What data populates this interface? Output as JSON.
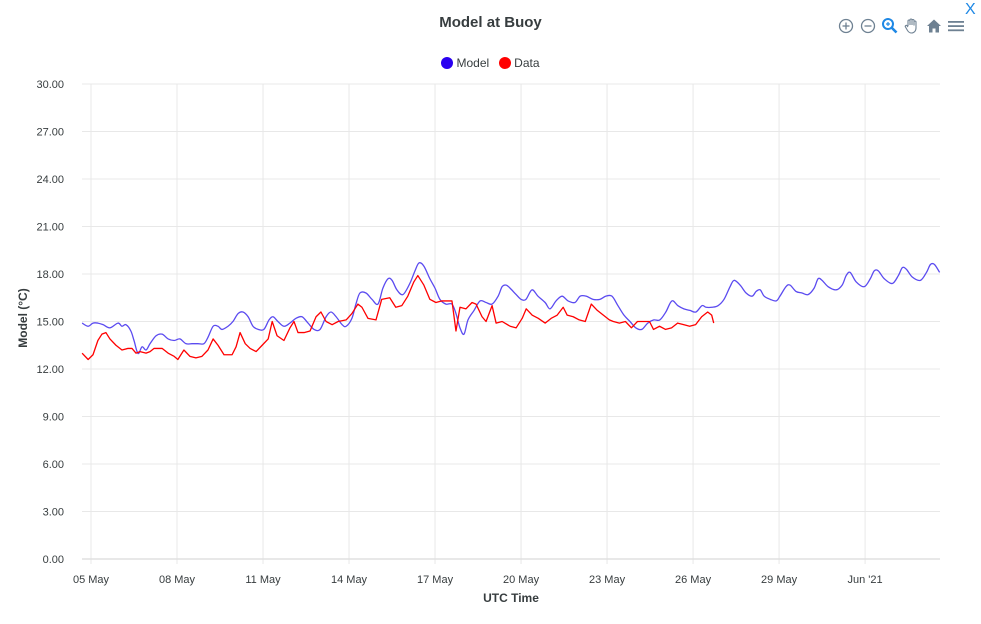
{
  "header": {
    "title": "Model at Buoy",
    "close_label": "X"
  },
  "toolbar": {
    "icons": [
      "zoom-in-icon",
      "zoom-out-icon",
      "selection-zoom-icon",
      "pan-icon",
      "home-reset-icon",
      "menu-icon"
    ],
    "active_color": "#1e88e5",
    "inactive_color": "#6e8192"
  },
  "legend": [
    {
      "label": "Model",
      "color": "#2a00f0"
    },
    {
      "label": "Data",
      "color": "#ff0000"
    }
  ],
  "chart_data": {
    "type": "line",
    "title": "Model at Buoy",
    "xlabel": "UTC Time",
    "ylabel": "Model (°C)",
    "ylim": [
      0,
      30
    ],
    "yticks": [
      "0.00",
      "3.00",
      "6.00",
      "9.00",
      "12.00",
      "15.00",
      "18.00",
      "21.00",
      "24.00",
      "27.00",
      "30.00"
    ],
    "xticks": [
      "05 May",
      "08 May",
      "11 May",
      "14 May",
      "17 May",
      "20 May",
      "23 May",
      "26 May",
      "29 May",
      "Jun '21"
    ],
    "x_unit": "days since 05 May",
    "xlim": [
      -0.31,
      29.6
    ],
    "grid": true,
    "legend_position": "top",
    "series": [
      {
        "name": "Model",
        "color": "#5b4bf0",
        "points": [
          [
            -0.31,
            14.9
          ],
          [
            -0.1,
            14.7
          ],
          [
            0.07,
            14.9
          ],
          [
            0.24,
            14.9
          ],
          [
            0.42,
            14.8
          ],
          [
            0.66,
            14.6
          ],
          [
            0.94,
            14.9
          ],
          [
            1.08,
            14.7
          ],
          [
            1.22,
            14.8
          ],
          [
            1.39,
            14.4
          ],
          [
            1.5,
            13.8
          ],
          [
            1.64,
            12.98
          ],
          [
            1.78,
            13.4
          ],
          [
            1.92,
            13.2
          ],
          [
            2.06,
            13.6
          ],
          [
            2.27,
            14.1
          ],
          [
            2.48,
            14.2
          ],
          [
            2.69,
            13.9
          ],
          [
            2.9,
            13.8
          ],
          [
            3.1,
            13.9
          ],
          [
            3.31,
            13.6
          ],
          [
            3.52,
            13.6
          ],
          [
            3.73,
            13.6
          ],
          [
            3.94,
            13.6
          ],
          [
            4.08,
            14.0
          ],
          [
            4.26,
            14.7
          ],
          [
            4.43,
            14.7
          ],
          [
            4.57,
            14.5
          ],
          [
            4.78,
            14.7
          ],
          [
            4.95,
            15.0
          ],
          [
            5.13,
            15.5
          ],
          [
            5.3,
            15.6
          ],
          [
            5.48,
            15.3
          ],
          [
            5.65,
            14.7
          ],
          [
            5.83,
            14.5
          ],
          [
            6.03,
            14.5
          ],
          [
            6.21,
            15.1
          ],
          [
            6.35,
            15.3
          ],
          [
            6.52,
            15.0
          ],
          [
            6.73,
            14.7
          ],
          [
            6.94,
            14.9
          ],
          [
            7.15,
            15.2
          ],
          [
            7.36,
            15.3
          ],
          [
            7.57,
            14.9
          ],
          [
            7.78,
            14.5
          ],
          [
            7.99,
            14.5
          ],
          [
            8.2,
            15.3
          ],
          [
            8.37,
            15.6
          ],
          [
            8.55,
            15.3
          ],
          [
            8.76,
            14.8
          ],
          [
            8.9,
            14.7
          ],
          [
            9.1,
            15.2
          ],
          [
            9.24,
            16.1
          ],
          [
            9.38,
            16.8
          ],
          [
            9.59,
            16.8
          ],
          [
            9.8,
            16.4
          ],
          [
            10.01,
            16.1
          ],
          [
            10.18,
            17.1
          ],
          [
            10.36,
            17.7
          ],
          [
            10.5,
            17.6
          ],
          [
            10.67,
            17.0
          ],
          [
            10.88,
            16.7
          ],
          [
            11.12,
            17.4
          ],
          [
            11.3,
            18.2
          ],
          [
            11.44,
            18.7
          ],
          [
            11.61,
            18.5
          ],
          [
            11.82,
            17.7
          ],
          [
            12.0,
            17.1
          ],
          [
            12.17,
            16.4
          ],
          [
            12.38,
            16.1
          ],
          [
            12.59,
            16.1
          ],
          [
            12.73,
            15.5
          ],
          [
            12.87,
            14.6
          ],
          [
            13.01,
            14.2
          ],
          [
            13.15,
            15.1
          ],
          [
            13.36,
            15.7
          ],
          [
            13.57,
            16.3
          ],
          [
            13.78,
            16.2
          ],
          [
            13.99,
            16.1
          ],
          [
            14.2,
            16.6
          ],
          [
            14.34,
            17.2
          ],
          [
            14.48,
            17.3
          ],
          [
            14.62,
            17.1
          ],
          [
            14.83,
            16.7
          ],
          [
            15.0,
            16.4
          ],
          [
            15.17,
            16.4
          ],
          [
            15.38,
            17.0
          ],
          [
            15.59,
            16.6
          ],
          [
            15.84,
            16.2
          ],
          [
            16.01,
            15.8
          ],
          [
            16.22,
            16.3
          ],
          [
            16.43,
            16.6
          ],
          [
            16.64,
            16.3
          ],
          [
            16.88,
            16.2
          ],
          [
            17.06,
            16.6
          ],
          [
            17.27,
            16.6
          ],
          [
            17.51,
            16.4
          ],
          [
            17.75,
            16.4
          ],
          [
            17.96,
            16.6
          ],
          [
            18.17,
            16.6
          ],
          [
            18.38,
            16.0
          ],
          [
            18.59,
            15.4
          ],
          [
            18.8,
            15.0
          ],
          [
            19.0,
            14.6
          ],
          [
            19.21,
            14.5
          ],
          [
            19.42,
            14.9
          ],
          [
            19.63,
            15.1
          ],
          [
            19.84,
            15.1
          ],
          [
            20.05,
            15.6
          ],
          [
            20.26,
            16.3
          ],
          [
            20.47,
            16.0
          ],
          [
            20.68,
            15.8
          ],
          [
            20.89,
            15.7
          ],
          [
            21.1,
            15.6
          ],
          [
            21.31,
            16.0
          ],
          [
            21.45,
            15.9
          ],
          [
            21.66,
            15.9
          ],
          [
            21.87,
            16.0
          ],
          [
            22.08,
            16.4
          ],
          [
            22.29,
            17.2
          ],
          [
            22.43,
            17.6
          ],
          [
            22.64,
            17.3
          ],
          [
            22.85,
            16.8
          ],
          [
            23.06,
            16.6
          ],
          [
            23.2,
            16.9
          ],
          [
            23.34,
            17.0
          ],
          [
            23.48,
            16.6
          ],
          [
            23.69,
            16.4
          ],
          [
            23.9,
            16.3
          ],
          [
            24.03,
            16.6
          ],
          [
            24.24,
            17.2
          ],
          [
            24.38,
            17.3
          ],
          [
            24.59,
            16.9
          ],
          [
            24.8,
            16.8
          ],
          [
            25.01,
            16.7
          ],
          [
            25.22,
            17.1
          ],
          [
            25.36,
            17.7
          ],
          [
            25.5,
            17.6
          ],
          [
            25.71,
            17.2
          ],
          [
            25.99,
            17.0
          ],
          [
            26.2,
            17.3
          ],
          [
            26.34,
            17.9
          ],
          [
            26.48,
            18.1
          ],
          [
            26.69,
            17.5
          ],
          [
            26.97,
            17.2
          ],
          [
            27.18,
            17.7
          ],
          [
            27.32,
            18.2
          ],
          [
            27.46,
            18.2
          ],
          [
            27.67,
            17.7
          ],
          [
            27.95,
            17.4
          ],
          [
            28.16,
            17.9
          ],
          [
            28.3,
            18.4
          ],
          [
            28.44,
            18.3
          ],
          [
            28.65,
            17.8
          ],
          [
            28.93,
            17.6
          ],
          [
            29.14,
            18.1
          ],
          [
            29.28,
            18.6
          ],
          [
            29.42,
            18.6
          ],
          [
            29.6,
            18.1
          ]
        ]
      },
      {
        "name": "Data",
        "color": "#ff0000",
        "points": [
          [
            -0.31,
            13.0
          ],
          [
            -0.1,
            12.6
          ],
          [
            0.07,
            12.9
          ],
          [
            0.24,
            13.8
          ],
          [
            0.38,
            14.2
          ],
          [
            0.52,
            14.3
          ],
          [
            0.66,
            13.9
          ],
          [
            0.87,
            13.5
          ],
          [
            1.08,
            13.2
          ],
          [
            1.29,
            13.3
          ],
          [
            1.43,
            13.3
          ],
          [
            1.57,
            13.0
          ],
          [
            1.71,
            13.1
          ],
          [
            1.92,
            13.0
          ],
          [
            2.06,
            13.1
          ],
          [
            2.2,
            13.3
          ],
          [
            2.48,
            13.3
          ],
          [
            2.69,
            13.0
          ],
          [
            2.9,
            12.8
          ],
          [
            3.03,
            12.6
          ],
          [
            3.24,
            13.2
          ],
          [
            3.45,
            12.8
          ],
          [
            3.66,
            12.7
          ],
          [
            3.87,
            12.8
          ],
          [
            4.08,
            13.2
          ],
          [
            4.26,
            13.9
          ],
          [
            4.43,
            13.5
          ],
          [
            4.64,
            12.9
          ],
          [
            4.92,
            12.9
          ],
          [
            5.06,
            13.4
          ],
          [
            5.2,
            14.3
          ],
          [
            5.38,
            13.6
          ],
          [
            5.55,
            13.3
          ],
          [
            5.76,
            13.1
          ],
          [
            5.97,
            13.5
          ],
          [
            6.18,
            13.9
          ],
          [
            6.32,
            15.0
          ],
          [
            6.49,
            14.1
          ],
          [
            6.73,
            13.8
          ],
          [
            6.94,
            14.6
          ],
          [
            7.08,
            15.0
          ],
          [
            7.22,
            14.3
          ],
          [
            7.43,
            14.3
          ],
          [
            7.64,
            14.4
          ],
          [
            7.85,
            15.3
          ],
          [
            8.02,
            15.6
          ],
          [
            8.2,
            15.0
          ],
          [
            8.41,
            14.8
          ],
          [
            8.62,
            15.0
          ],
          [
            8.9,
            15.1
          ],
          [
            9.1,
            15.5
          ],
          [
            9.31,
            16.1
          ],
          [
            9.45,
            15.9
          ],
          [
            9.66,
            15.2
          ],
          [
            9.94,
            15.1
          ],
          [
            10.14,
            16.4
          ],
          [
            10.42,
            16.5
          ],
          [
            10.63,
            15.9
          ],
          [
            10.84,
            16.0
          ],
          [
            11.05,
            16.6
          ],
          [
            11.26,
            17.5
          ],
          [
            11.4,
            17.9
          ],
          [
            11.61,
            17.3
          ],
          [
            11.82,
            16.4
          ],
          [
            12.03,
            16.2
          ],
          [
            12.24,
            16.3
          ],
          [
            12.45,
            16.3
          ],
          [
            12.59,
            16.3
          ],
          [
            12.73,
            14.4
          ],
          [
            12.87,
            15.9
          ],
          [
            13.08,
            15.8
          ],
          [
            13.29,
            16.2
          ],
          [
            13.43,
            16.1
          ],
          [
            13.64,
            15.3
          ],
          [
            13.78,
            15.0
          ],
          [
            13.99,
            16.0
          ],
          [
            14.13,
            14.9
          ],
          [
            14.34,
            15.0
          ],
          [
            14.62,
            14.7
          ],
          [
            14.83,
            14.6
          ],
          [
            15.04,
            15.2
          ],
          [
            15.18,
            15.8
          ],
          [
            15.39,
            15.4
          ],
          [
            15.6,
            15.2
          ],
          [
            15.84,
            14.9
          ],
          [
            16.05,
            15.2
          ],
          [
            16.26,
            15.4
          ],
          [
            16.47,
            15.9
          ],
          [
            16.61,
            15.4
          ],
          [
            16.82,
            15.3
          ],
          [
            17.03,
            15.1
          ],
          [
            17.24,
            15.0
          ],
          [
            17.45,
            16.1
          ],
          [
            17.66,
            15.7
          ],
          [
            17.87,
            15.4
          ],
          [
            18.08,
            15.1
          ],
          [
            18.22,
            15.0
          ],
          [
            18.43,
            14.9
          ],
          [
            18.64,
            15.0
          ],
          [
            18.85,
            14.6
          ],
          [
            19.06,
            15.0
          ],
          [
            19.27,
            15.0
          ],
          [
            19.48,
            15.0
          ],
          [
            19.62,
            14.5
          ],
          [
            19.83,
            14.7
          ],
          [
            20.04,
            14.5
          ],
          [
            20.25,
            14.6
          ],
          [
            20.46,
            14.9
          ],
          [
            20.67,
            14.8
          ],
          [
            20.88,
            14.7
          ],
          [
            21.09,
            14.8
          ],
          [
            21.3,
            15.3
          ],
          [
            21.51,
            15.6
          ],
          [
            21.65,
            15.4
          ],
          [
            21.72,
            14.9
          ]
        ]
      }
    ]
  }
}
